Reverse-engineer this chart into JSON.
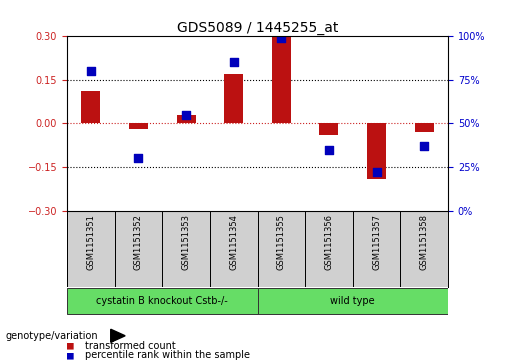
{
  "title": "GDS5089 / 1445255_at",
  "samples": [
    "GSM1151351",
    "GSM1151352",
    "GSM1151353",
    "GSM1151354",
    "GSM1151355",
    "GSM1151356",
    "GSM1151357",
    "GSM1151358"
  ],
  "transformed_count": [
    0.11,
    -0.02,
    0.03,
    0.17,
    0.3,
    -0.04,
    -0.19,
    -0.03
  ],
  "percentile_rank": [
    80,
    30,
    55,
    85,
    99,
    35,
    22,
    37
  ],
  "ylim_left": [
    -0.3,
    0.3
  ],
  "ylim_right": [
    0,
    100
  ],
  "yticks_left": [
    -0.3,
    -0.15,
    0,
    0.15,
    0.3
  ],
  "yticks_right": [
    0,
    25,
    50,
    75,
    100
  ],
  "hlines": [
    0.15,
    -0.15
  ],
  "red_hline": 0,
  "bar_color": "#bb1111",
  "dot_color": "#0000bb",
  "left_tick_color": "#cc2222",
  "right_tick_color": "#0000cc",
  "groups": [
    {
      "label": "cystatin B knockout Cstb-/-",
      "start": 0,
      "end": 3
    },
    {
      "label": "wild type",
      "start": 4,
      "end": 7
    }
  ],
  "group_color": "#66dd66",
  "group_label": "genotype/variation",
  "legend_items": [
    {
      "color": "#bb1111",
      "label": "transformed count"
    },
    {
      "color": "#0000bb",
      "label": "percentile rank within the sample"
    }
  ],
  "bar_width": 0.4,
  "dot_size": 40,
  "background_color": "#ffffff",
  "plot_bg_color": "#ffffff",
  "sample_box_color": "#d0d0d0",
  "title_fontsize": 10,
  "tick_fontsize": 7,
  "label_fontsize": 7
}
